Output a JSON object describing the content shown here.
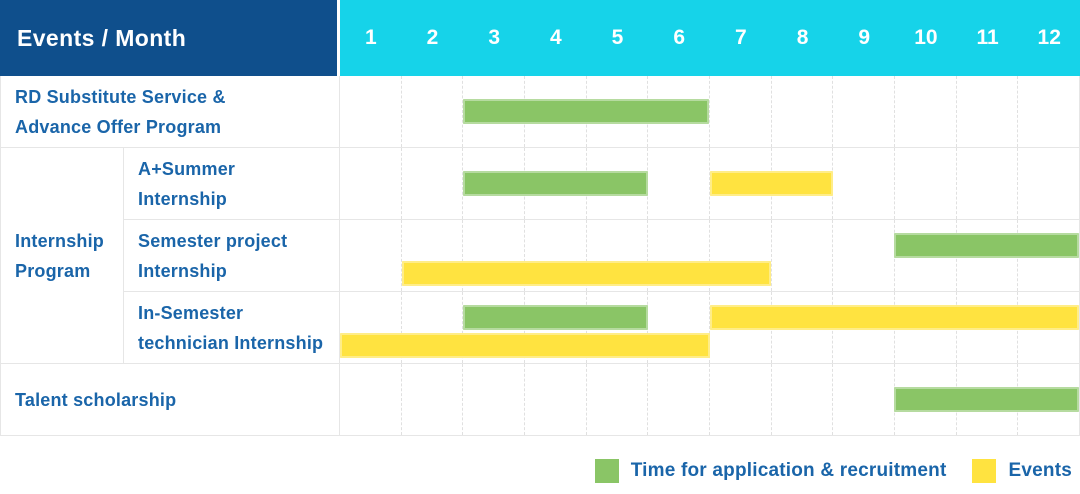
{
  "header": {
    "title": "Events / Month",
    "months": [
      "1",
      "2",
      "3",
      "4",
      "5",
      "6",
      "7",
      "8",
      "9",
      "10",
      "11",
      "12"
    ]
  },
  "colors": {
    "header_bg": "#0f4f8c",
    "months_bg": "#16d3e9",
    "green": "#8ac566",
    "yellow": "#ffe340",
    "label_text": "#1a65a9",
    "header_text": "#ffffff",
    "grid_line": "#e6e6e6"
  },
  "legend": [
    {
      "series": "green",
      "label": "Time for application & recruitment"
    },
    {
      "series": "yellow",
      "label": "Events"
    }
  ],
  "chart_data": {
    "type": "bar",
    "subtype": "gantt-schedule",
    "title": "Events / Month",
    "x_axis": {
      "unit": "month",
      "ticks": [
        1,
        2,
        3,
        4,
        5,
        6,
        7,
        8,
        9,
        10,
        11,
        12
      ],
      "range": [
        1,
        12
      ]
    },
    "legend": [
      {
        "series": "green",
        "label": "Time for application & recruitment",
        "color": "#8ac566"
      },
      {
        "series": "yellow",
        "label": "Events",
        "color": "#ffe340"
      }
    ],
    "rows": [
      {
        "kind": "single",
        "label": "RD Substitute Service & Advance Offer Program",
        "label_lines": [
          "RD Substitute Service &",
          "Advance Offer Program"
        ],
        "lanes": [
          [
            {
              "series": "green",
              "start_month": 3,
              "end_month": 6
            }
          ]
        ]
      },
      {
        "kind": "group",
        "label": "Internship Program",
        "label_lines": [
          "Internship",
          "Program"
        ],
        "children": [
          {
            "label": "A+Summer Internship",
            "label_lines": [
              "A+Summer",
              "Internship"
            ],
            "lanes": [
              [
                {
                  "series": "green",
                  "start_month": 3,
                  "end_month": 5
                },
                {
                  "series": "yellow",
                  "start_month": 7,
                  "end_month": 8
                }
              ]
            ]
          },
          {
            "label": "Semester project Internship",
            "label_lines": [
              "Semester project",
              "Internship"
            ],
            "lanes": [
              [
                {
                  "series": "green",
                  "start_month": 10,
                  "end_month": 12
                }
              ],
              [
                {
                  "series": "yellow",
                  "start_month": 2,
                  "end_month": 7
                }
              ]
            ]
          },
          {
            "label": "In-Semester technician Internship",
            "label_lines": [
              "In-Semester",
              "technician Internship"
            ],
            "lanes": [
              [
                {
                  "series": "green",
                  "start_month": 3,
                  "end_month": 5
                },
                {
                  "series": "yellow",
                  "start_month": 7,
                  "end_month": 12
                }
              ],
              [
                {
                  "series": "yellow",
                  "start_month": 1,
                  "end_month": 6
                }
              ]
            ]
          }
        ]
      },
      {
        "kind": "single",
        "label": "Talent scholarship",
        "label_lines": [
          "Talent scholarship"
        ],
        "lanes": [
          [
            {
              "series": "green",
              "start_month": 10,
              "end_month": 12
            }
          ]
        ]
      }
    ]
  }
}
